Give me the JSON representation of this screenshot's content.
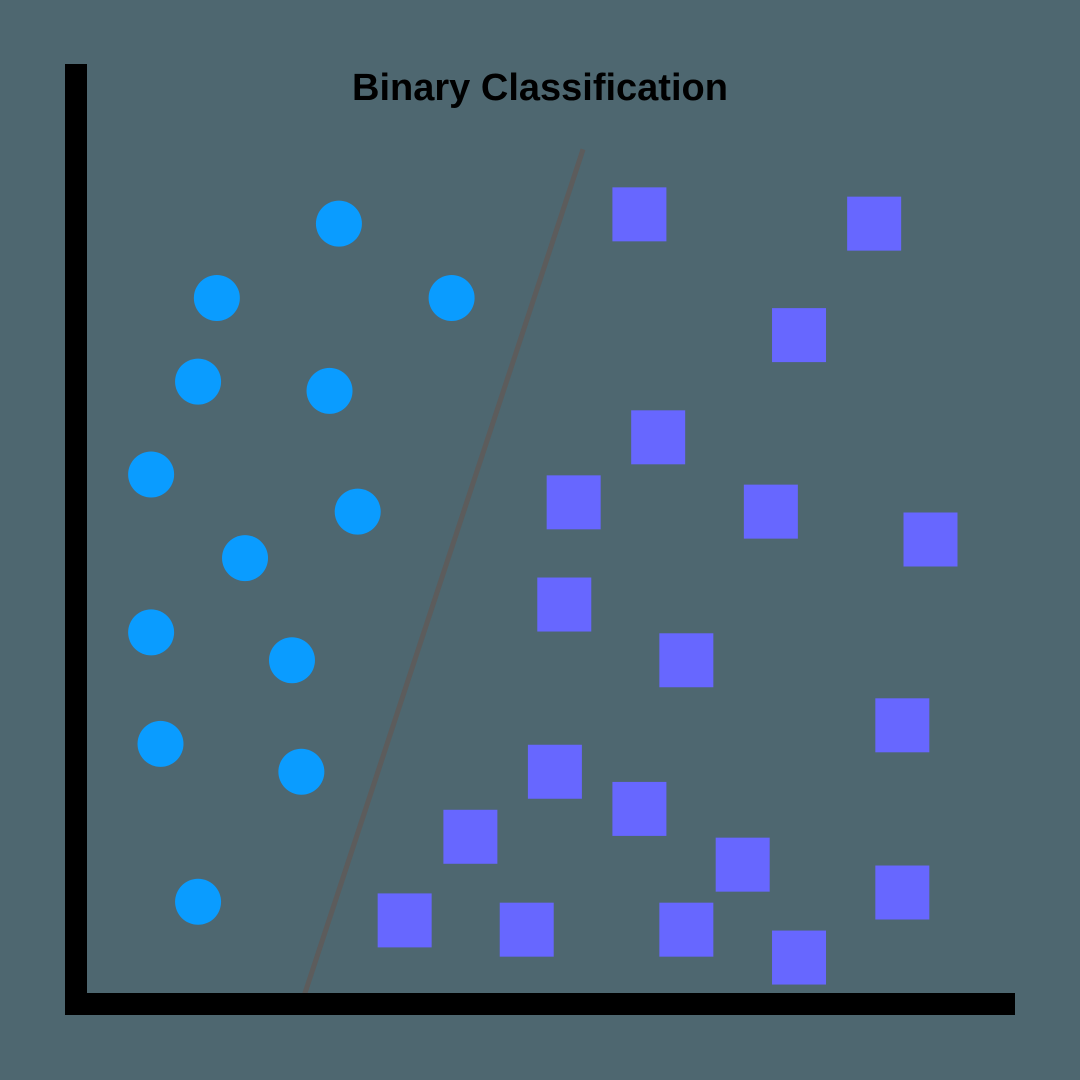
{
  "colors": {
    "background": "#4e6770",
    "axis": "#000000",
    "boundary": "#5c5c5c",
    "class_a": "#0a9cff",
    "class_b": "#6767ff"
  },
  "chart_data": {
    "type": "scatter",
    "title": "Binary Classification",
    "xlabel": "",
    "ylabel": "",
    "xlim": [
      0,
      100
    ],
    "ylim": [
      0,
      100
    ],
    "grid": false,
    "legend": "none",
    "series": [
      {
        "marker": "circle",
        "color": "#0a9cff",
        "points": [
          [
            28,
            84
          ],
          [
            15,
            76
          ],
          [
            40,
            76
          ],
          [
            13,
            67
          ],
          [
            27,
            66
          ],
          [
            8,
            57
          ],
          [
            30,
            53
          ],
          [
            18,
            48
          ],
          [
            8,
            40
          ],
          [
            23,
            37
          ],
          [
            9,
            28
          ],
          [
            24,
            25
          ],
          [
            13,
            11
          ]
        ]
      },
      {
        "marker": "square",
        "color": "#6767ff",
        "points": [
          [
            60,
            85
          ],
          [
            85,
            84
          ],
          [
            77,
            72
          ],
          [
            62,
            61
          ],
          [
            53,
            54
          ],
          [
            74,
            53
          ],
          [
            91,
            50
          ],
          [
            52,
            43
          ],
          [
            65,
            37
          ],
          [
            88,
            30
          ],
          [
            51,
            25
          ],
          [
            60,
            21
          ],
          [
            42,
            18
          ],
          [
            71,
            15
          ],
          [
            88,
            12
          ],
          [
            35,
            9
          ],
          [
            48,
            8
          ],
          [
            65,
            8
          ],
          [
            77,
            5
          ]
        ]
      }
    ],
    "decision_boundary": {
      "x": [
        24,
        54
      ],
      "y": [
        0,
        92
      ]
    }
  }
}
